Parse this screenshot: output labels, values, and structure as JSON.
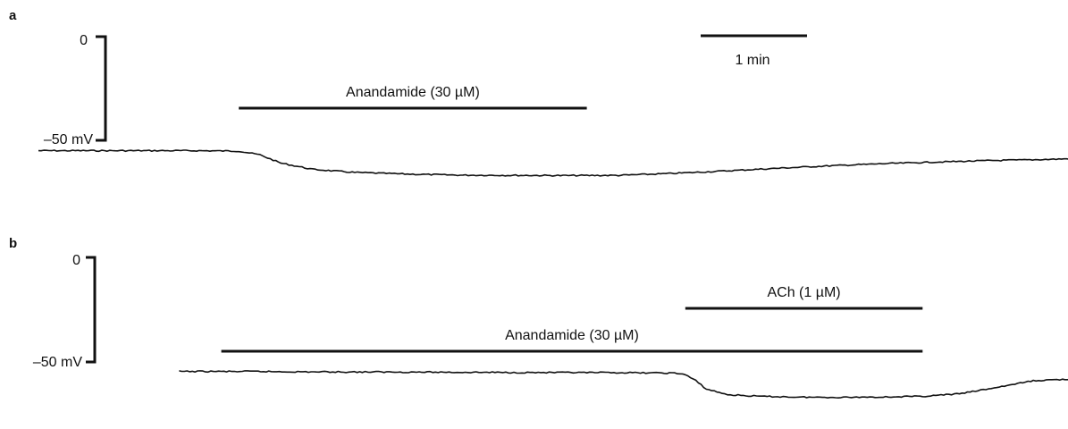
{
  "chart_data": [
    {
      "type": "line",
      "panel_label": "a",
      "scale_bar": {
        "top_label": "0",
        "bottom_label": "–50 mV",
        "top_mv": 0,
        "bottom_mv": -50
      },
      "time_scale": {
        "label": "1 min",
        "minutes": 1
      },
      "applications": [
        {
          "label": "Anandamide (30 µM)",
          "start_min": 1.9,
          "end_min": 5.2
        }
      ],
      "series": [
        {
          "x": [
            0,
            0.5,
            1.0,
            1.5,
            1.9,
            2.1,
            2.3,
            2.6,
            3.0,
            3.5,
            4.0,
            4.5,
            5.0,
            5.5,
            6.0,
            6.5,
            7.0,
            7.5,
            8.0,
            8.5,
            9.0,
            9.5,
            10.0
          ],
          "y": [
            -55,
            -55,
            -55,
            -55,
            -55.2,
            -57,
            -61,
            -64,
            -65.5,
            -66.3,
            -66.8,
            -66.9,
            -67.0,
            -66.9,
            -66.0,
            -64.8,
            -63.5,
            -62.3,
            -61.3,
            -60.5,
            -59.8,
            -59.3,
            -58.6
          ]
        }
      ]
    },
    {
      "type": "line",
      "panel_label": "b",
      "scale_bar": {
        "top_label": "0",
        "bottom_label": "–50 mV",
        "top_mv": 0,
        "bottom_mv": -50
      },
      "applications": [
        {
          "label": "ACh (1 µM)",
          "start_min": 5.6,
          "end_min": 7.85
        },
        {
          "label": "Anandamide (30 µM)",
          "start_min": 1.2,
          "end_min": 7.85
        }
      ],
      "series": [
        {
          "x": [
            0.8,
            1.5,
            2.0,
            3.0,
            4.0,
            5.0,
            5.5,
            5.6,
            5.7,
            5.8,
            6.0,
            6.3,
            6.7,
            7.0,
            7.5,
            7.85,
            8.2,
            8.5,
            8.9,
            9.3
          ],
          "y": [
            -55,
            -55,
            -55.2,
            -55.3,
            -55.5,
            -55.6,
            -55.8,
            -56.5,
            -59.5,
            -63.5,
            -66.2,
            -67.0,
            -67.4,
            -67.5,
            -67.3,
            -67.0,
            -65.8,
            -63.2,
            -59.5,
            -58.5
          ]
        }
      ]
    }
  ]
}
